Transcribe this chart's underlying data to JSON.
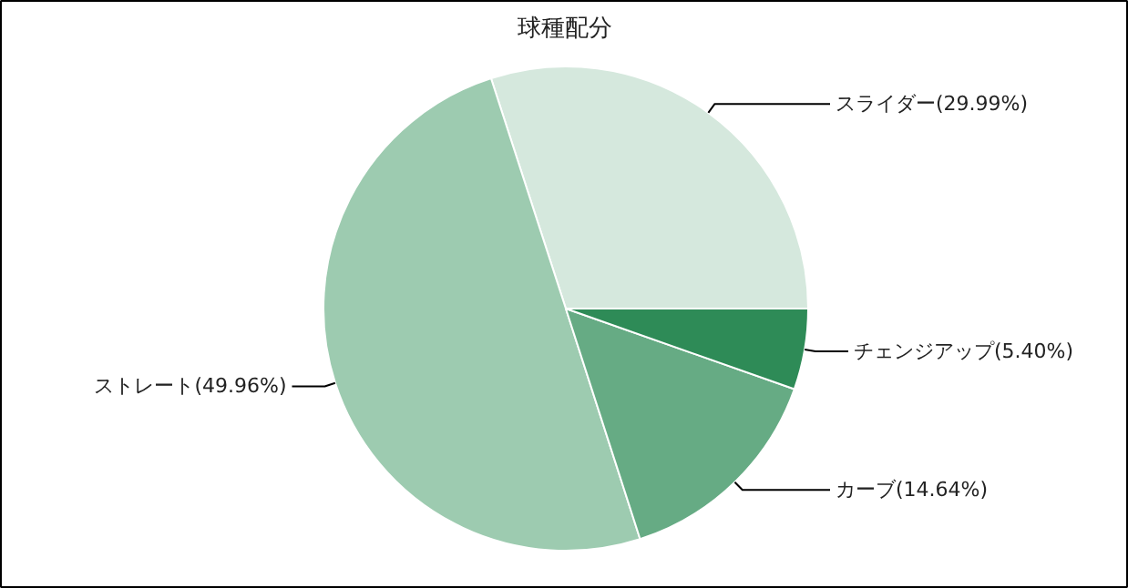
{
  "chart_data": {
    "type": "pie",
    "title": "球種配分",
    "categories": [
      "スライダー",
      "ストレート",
      "カーブ",
      "チェンジアップ"
    ],
    "values": [
      29.99,
      49.96,
      14.64,
      5.4
    ],
    "colors": [
      "#d5e8dd",
      "#9dcbb0",
      "#66ab84",
      "#2e8b57"
    ],
    "value_labels": [
      "(29.99%)",
      "(49.96%)",
      "(14.64%)",
      "(5.40%)"
    ]
  }
}
